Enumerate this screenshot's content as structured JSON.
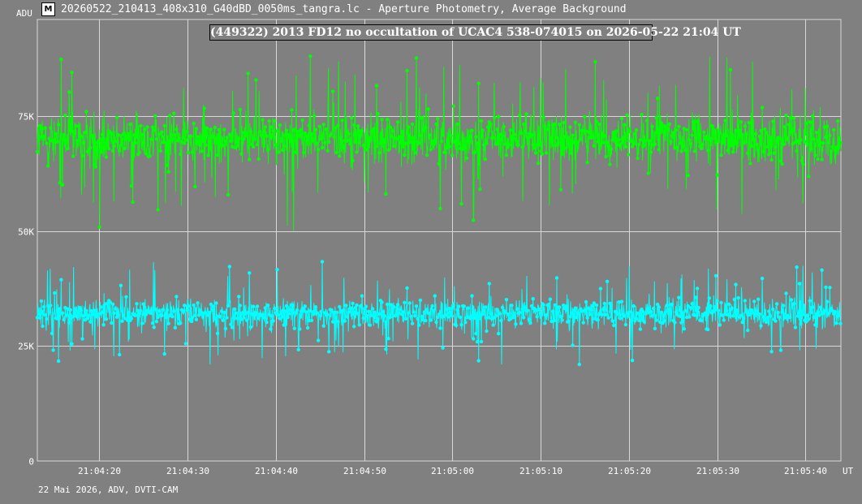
{
  "window": {
    "title": "20260522_210413_408x310_G40dBD_0050ms_tangra.lc - Aperture Photometry, Average Background",
    "icon": "tangra-app-icon"
  },
  "footer": {
    "info": "22 Mai 2026, ADV, DVTI-CAM"
  },
  "chart_data": {
    "type": "line",
    "title": "(449322) 2013 FD12 no occultation of UCAC4 538-074015 on 2026-05-22  21:04 UT",
    "ylabel": "ADU",
    "xlabel": "UT",
    "ylim": [
      0,
      96000
    ],
    "xlim_seconds": [
      0,
      91
    ],
    "y_ticks": [
      0,
      25000,
      50000,
      75000
    ],
    "y_tick_labels": [
      "0",
      "25K",
      "50K",
      "75K"
    ],
    "x_tick_labels": [
      "21:04:20",
      "21:04:30",
      "21:04:40",
      "21:04:50",
      "21:05:00",
      "21:05:10",
      "21:05:20",
      "21:05:30",
      "21:05:40"
    ],
    "grid": true,
    "series": [
      {
        "color": "#00ff00",
        "mean": 70000,
        "spread": 6500,
        "points": 1820,
        "min": 50000,
        "max": 96000
      },
      {
        "color": "#00ffff",
        "mean": 32000,
        "spread": 3800,
        "points": 1820,
        "min": 21000,
        "max": 46000
      }
    ]
  }
}
